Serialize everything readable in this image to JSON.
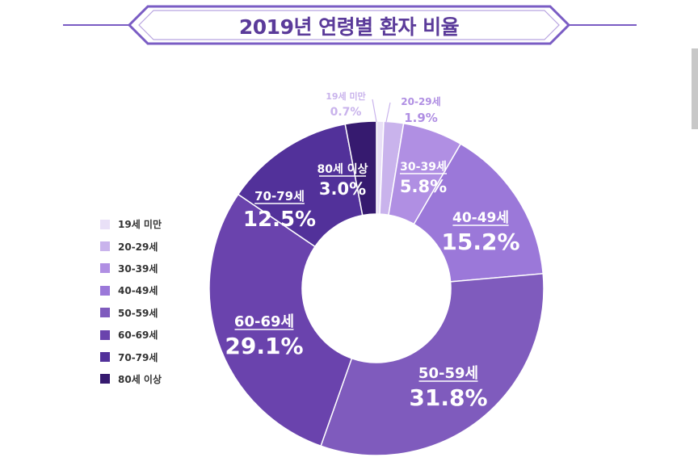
{
  "title": "2019년 연령별 환자 비율",
  "colors": {
    "title": "#5b3b9a",
    "banner": "#7a5cc4",
    "slices": [
      "#e9e0f7",
      "#c9b3ec",
      "#b08fe3",
      "#9b78d9",
      "#7f5bbd",
      "#6a43ad",
      "#52319a",
      "#361a6f"
    ]
  },
  "chart_data": {
    "type": "pie",
    "donut": true,
    "categories": [
      "19세 미만",
      "20-29세",
      "30-39세",
      "40-49세",
      "50-59세",
      "60-69세",
      "70-79세",
      "80세 이상"
    ],
    "values": [
      0.7,
      1.9,
      5.8,
      15.2,
      31.8,
      29.1,
      12.5,
      3.0
    ],
    "value_labels": [
      "0.7%",
      "1.9%",
      "5.8%",
      "15.2%",
      "31.8%",
      "29.1%",
      "12.5%",
      "3.0%"
    ],
    "legend_position": "left",
    "start": "top",
    "direction": "clockwise"
  }
}
